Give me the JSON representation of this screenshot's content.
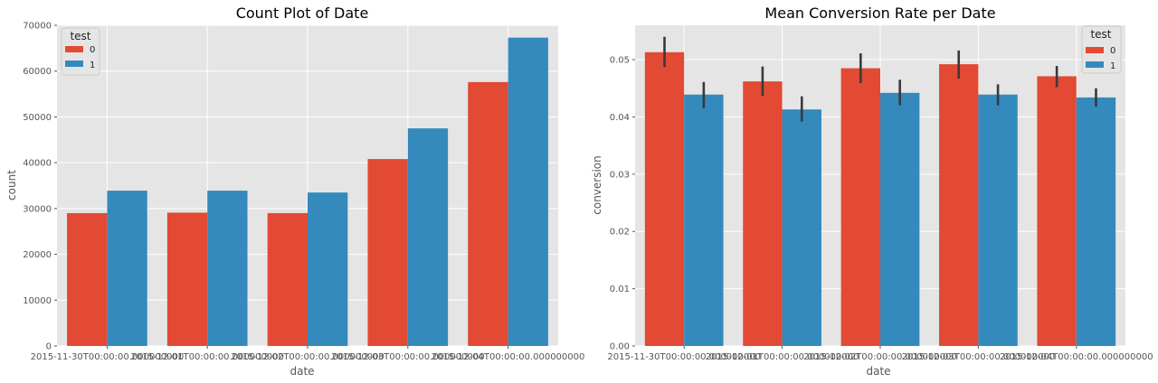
{
  "chart_data": [
    {
      "type": "bar",
      "title": "Count Plot of Date",
      "xlabel": "date",
      "ylabel": "count",
      "ylim": [
        0,
        70000
      ],
      "yticks": [
        "0",
        "10000",
        "20000",
        "30000",
        "40000",
        "50000",
        "60000",
        "70000"
      ],
      "categories": [
        "2015-11-30T00:00:00.000000000",
        "2015-12-01T00:00:00.000000000",
        "2015-12-02T00:00:00.000000000",
        "2015-12-03T00:00:00.000000000",
        "2015-12-04T00:00:00.000000000"
      ],
      "legend": {
        "title": "test",
        "placement": "top-left"
      },
      "series": [
        {
          "name": "0",
          "color": "#E24A33",
          "values": [
            29000,
            29100,
            29000,
            40800,
            57600
          ]
        },
        {
          "name": "1",
          "color": "#348ABD",
          "values": [
            33900,
            33900,
            33500,
            47500,
            67300
          ]
        }
      ],
      "grid": true
    },
    {
      "type": "bar",
      "title": "Mean Conversion Rate per Date",
      "xlabel": "date",
      "ylabel": "conversion",
      "ylim": [
        0,
        0.056
      ],
      "yticks": [
        "0.00",
        "0.01",
        "0.02",
        "0.03",
        "0.04",
        "0.05"
      ],
      "categories": [
        "2015-11-30T00:00:00.000000000",
        "2015-12-01T00:00:00.000000000",
        "2015-12-02T00:00:00.000000000",
        "2015-12-03T00:00:00.000000000",
        "2015-12-04T00:00:00.000000000"
      ],
      "legend": {
        "title": "test",
        "placement": "top-right"
      },
      "series": [
        {
          "name": "0",
          "color": "#E24A33",
          "values": [
            0.0513,
            0.0462,
            0.0485,
            0.0492,
            0.0471
          ],
          "error_low": [
            0.0487,
            0.0437,
            0.0459,
            0.0467,
            0.0452
          ],
          "error_high": [
            0.054,
            0.0488,
            0.0511,
            0.0516,
            0.0489
          ]
        },
        {
          "name": "1",
          "color": "#348ABD",
          "values": [
            0.0439,
            0.0413,
            0.0442,
            0.0439,
            0.0434
          ],
          "error_low": [
            0.0415,
            0.0392,
            0.042,
            0.042,
            0.0418
          ],
          "error_high": [
            0.0461,
            0.0436,
            0.0465,
            0.0457,
            0.045
          ]
        }
      ],
      "grid": true
    }
  ]
}
